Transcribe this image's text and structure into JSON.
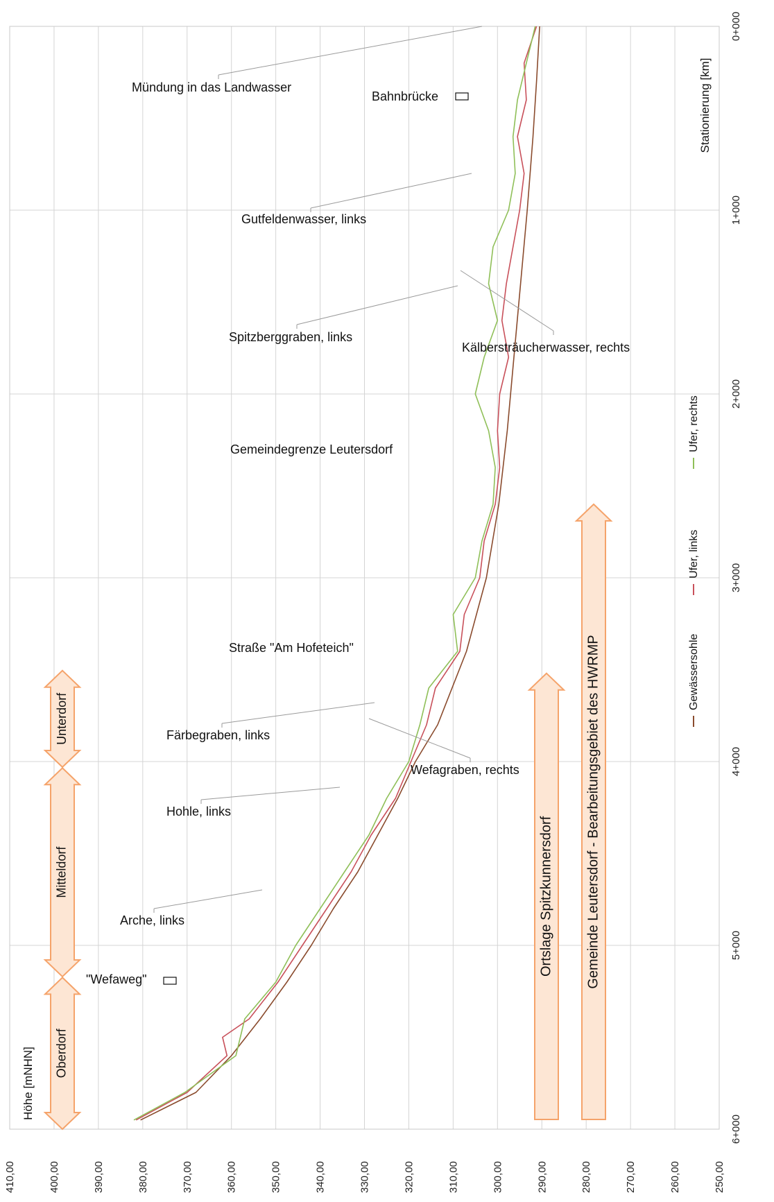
{
  "chart_data": {
    "type": "line",
    "orientation": "rotated-90",
    "x_axis": {
      "label": "Stationierung [km]",
      "range_km": [
        0,
        6
      ],
      "ticks": [
        "0+000",
        "1+000",
        "2+000",
        "3+000",
        "4+000",
        "5+000",
        "6+000"
      ]
    },
    "y_axis": {
      "label": "Höhe [mNHN]",
      "range": [
        250,
        410
      ],
      "ticks": [
        "410,00",
        "400,00",
        "390,00",
        "380,00",
        "370,00",
        "360,00",
        "350,00",
        "340,00",
        "330,00",
        "320,00",
        "310,00",
        "300,00",
        "290,00",
        "280,00",
        "270,00",
        "260,00",
        "250,00"
      ]
    },
    "grid": true,
    "legend_position": "right",
    "series": [
      {
        "name": "Gewässersohle",
        "color": "#8a4b2d",
        "x": [
          0.0,
          0.3,
          0.6,
          1.0,
          1.4,
          1.8,
          2.2,
          2.6,
          3.0,
          3.4,
          3.8,
          4.0,
          4.2,
          4.4,
          4.6,
          4.8,
          5.0,
          5.2,
          5.4,
          5.6,
          5.8,
          5.95
        ],
        "y": [
          290.5,
          291.2,
          292.0,
          293.3,
          294.8,
          296.3,
          297.8,
          299.7,
          302.5,
          307.0,
          313.5,
          318.5,
          322.5,
          327.0,
          331.5,
          337.0,
          342.0,
          347.5,
          353.5,
          360.0,
          368.0,
          380.5
        ]
      },
      {
        "name": "Ufer, links",
        "color": "#c8505a",
        "x": [
          0.0,
          0.2,
          0.4,
          0.6,
          0.8,
          1.0,
          1.2,
          1.4,
          1.6,
          1.8,
          2.0,
          2.2,
          2.4,
          2.6,
          2.8,
          3.0,
          3.2,
          3.4,
          3.6,
          3.8,
          4.0,
          4.2,
          4.4,
          4.6,
          4.8,
          5.0,
          5.2,
          5.4,
          5.5,
          5.6,
          5.8,
          5.95
        ],
        "y": [
          291.2,
          294.0,
          293.5,
          295.5,
          294.0,
          295.0,
          296.5,
          298.0,
          299.0,
          297.5,
          299.5,
          300.0,
          299.5,
          300.5,
          303.0,
          304.0,
          307.5,
          308.5,
          314.0,
          316.0,
          319.5,
          323.0,
          328.5,
          333.0,
          338.5,
          344.0,
          349.5,
          356.0,
          362.0,
          361.0,
          370.0,
          381.5
        ]
      },
      {
        "name": "Ufer, rechts",
        "color": "#8fbf58",
        "x": [
          0.0,
          0.2,
          0.4,
          0.6,
          0.8,
          1.0,
          1.2,
          1.4,
          1.6,
          1.8,
          2.0,
          2.2,
          2.4,
          2.6,
          2.8,
          3.0,
          3.2,
          3.4,
          3.6,
          3.8,
          4.0,
          4.2,
          4.4,
          4.6,
          4.8,
          5.0,
          5.2,
          5.4,
          5.6,
          5.8,
          5.95
        ],
        "y": [
          291.5,
          293.5,
          295.5,
          296.5,
          296.0,
          297.5,
          301.0,
          302.0,
          300.0,
          303.0,
          305.0,
          302.0,
          300.5,
          301.0,
          303.5,
          305.0,
          310.0,
          309.0,
          315.5,
          317.5,
          320.0,
          325.0,
          329.0,
          334.5,
          340.0,
          345.5,
          350.0,
          357.0,
          359.0,
          370.5,
          382.0
        ]
      }
    ],
    "annotations": [
      {
        "text": "Mündung in das Landwasser",
        "km": 0.0
      },
      {
        "text": "Bahnbrücke",
        "km": 0.42
      },
      {
        "text": "Gutfeldenwasser, links",
        "km": 0.94
      },
      {
        "text": "Kälbersträucherwasser, rechts",
        "km": 1.6
      },
      {
        "text": "Spitzberggraben, links",
        "km": 1.55
      },
      {
        "text": "Gemeindegrenze Leutersdorf",
        "km": 2.4
      },
      {
        "text": "Straße \"Am Hofeteich\"",
        "km": 3.85
      },
      {
        "text": "Färbegraben, links",
        "km": 4.03
      },
      {
        "text": "Wefagraben, rechts",
        "km": 4.12
      },
      {
        "text": "Hohle, links",
        "km": 4.55
      },
      {
        "text": "Arche, links",
        "km": 5.22
      },
      {
        "text": "\"Wefaweg\"",
        "km": 5.7
      }
    ],
    "bands": [
      {
        "text": "Unterdorf",
        "km_start": 3.52,
        "km_end": 4.03
      },
      {
        "text": "Mitteldorf",
        "km_start": 4.05,
        "km_end": 5.17
      },
      {
        "text": "Oberdorf",
        "km_start": 5.19,
        "km_end": 6.0
      }
    ],
    "regions": [
      {
        "text": "Ortslage Spitzkunnersdorf",
        "km_start": 3.52,
        "km_end": 6.0
      },
      {
        "text": "Gemeinde Leutersdorf - Bearbeitungsgebiet des HWRMP",
        "km_start": 2.6,
        "km_end": 6.0
      }
    ]
  },
  "colors": {
    "grid": "#d4d4d4",
    "arrow_fill": "#fde6d4",
    "arrow_stroke": "#f5a36a"
  }
}
